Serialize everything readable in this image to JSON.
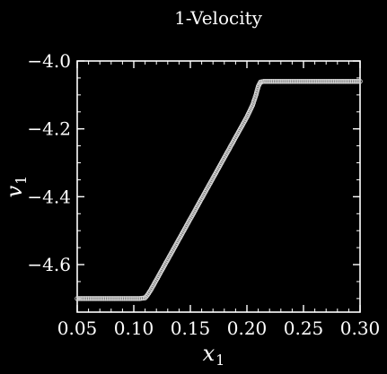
{
  "chart_data": {
    "type": "line",
    "title": "1-Velocity",
    "xlabel": "x",
    "xlabel_sub": "1",
    "ylabel": "v",
    "ylabel_sub": "1",
    "xlim": [
      0.05,
      0.3
    ],
    "ylim": [
      -4.74,
      -4.0
    ],
    "xticks": [
      0.05,
      0.1,
      0.15,
      0.2,
      0.25,
      0.3
    ],
    "xtick_labels": [
      "0.05",
      "0.10",
      "0.15",
      "0.20",
      "0.25",
      "0.30"
    ],
    "yticks": [
      -4.6,
      -4.4,
      -4.2,
      -4.0
    ],
    "ytick_labels": [
      "−4.6",
      "−4.4",
      "−4.2",
      "−4.0"
    ],
    "grid": false,
    "background": "#000000",
    "foreground": "#ffffff",
    "series": [
      {
        "color": "#d8d8d8",
        "marker": "circle-open",
        "x": [
          0.05,
          0.06,
          0.07,
          0.08,
          0.09,
          0.1,
          0.105,
          0.11,
          0.112,
          0.115,
          0.12,
          0.13,
          0.14,
          0.15,
          0.16,
          0.17,
          0.18,
          0.19,
          0.2,
          0.205,
          0.208,
          0.21,
          0.212,
          0.215,
          0.22,
          0.23,
          0.24,
          0.25,
          0.26,
          0.27,
          0.28,
          0.29,
          0.3
        ],
        "y": [
          -4.7,
          -4.7,
          -4.7,
          -4.7,
          -4.7,
          -4.7,
          -4.7,
          -4.698,
          -4.69,
          -4.675,
          -4.645,
          -4.585,
          -4.525,
          -4.465,
          -4.405,
          -4.345,
          -4.285,
          -4.225,
          -4.165,
          -4.13,
          -4.1,
          -4.075,
          -4.062,
          -4.06,
          -4.06,
          -4.06,
          -4.06,
          -4.06,
          -4.06,
          -4.06,
          -4.06,
          -4.06,
          -4.06
        ]
      }
    ]
  }
}
